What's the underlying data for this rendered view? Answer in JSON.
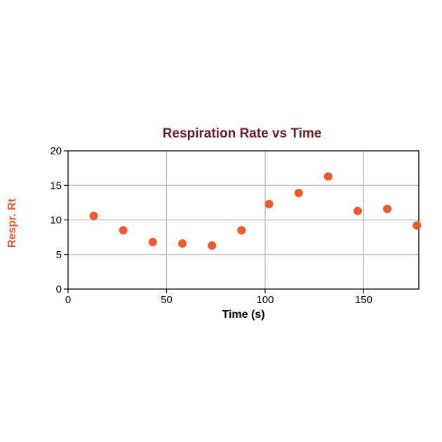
{
  "chart_data": {
    "type": "scatter",
    "title": "Respiration Rate vs Time",
    "xlabel": "Time (s)",
    "ylabel": "Respr. Rt",
    "xlim": [
      0,
      178
    ],
    "ylim": [
      0,
      20
    ],
    "grid": true,
    "x_ticks": [
      0,
      50,
      100,
      150
    ],
    "y_ticks": [
      0,
      5,
      10,
      15,
      20
    ],
    "x_tick_labels": [
      "0",
      "50",
      "100",
      "150"
    ],
    "y_tick_labels": [
      "0",
      "5",
      "10",
      "15",
      "20"
    ],
    "series": [
      {
        "x": [
          13,
          28,
          43,
          58,
          73,
          88,
          102,
          117,
          132,
          147,
          162,
          177
        ],
        "y": [
          10.6,
          8.5,
          6.8,
          6.6,
          6.3,
          8.5,
          12.3,
          13.9,
          16.3,
          11.3,
          11.6,
          9.2
        ]
      }
    ]
  },
  "colors": {
    "title": "#6b1f1f",
    "ylabel": "#f05a2a",
    "points": "#f05a2a",
    "grid": "#b7b7b7",
    "frame": "#000000"
  }
}
